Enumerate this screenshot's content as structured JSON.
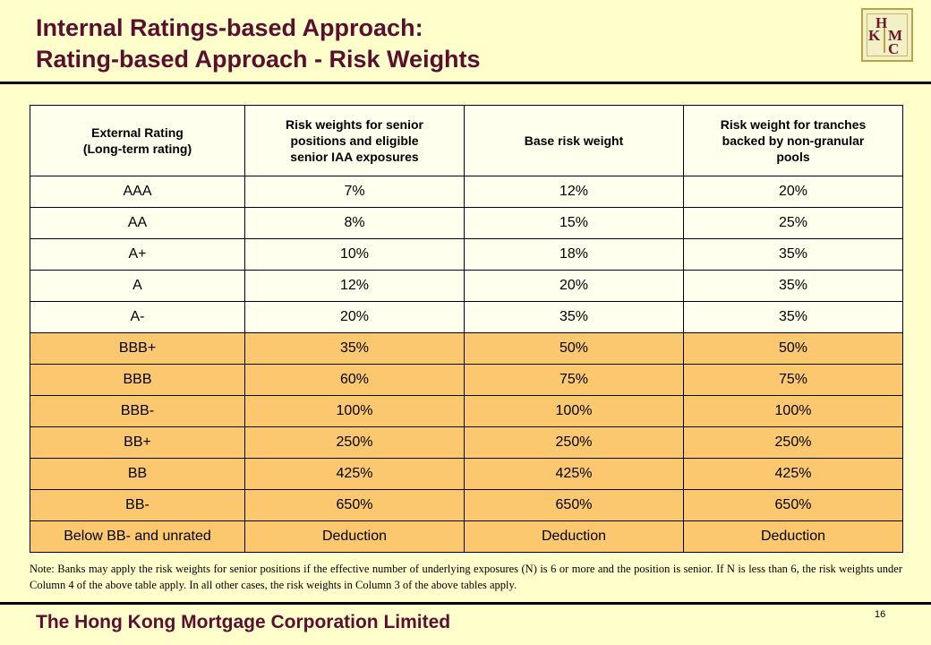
{
  "title": {
    "line1": "Internal Ratings-based Approach:",
    "line2": "Rating-based Approach - Risk Weights"
  },
  "logo": {
    "letters": [
      "H",
      "K",
      "M",
      "C"
    ]
  },
  "table": {
    "headers": [
      [
        "External Rating",
        "(Long-term rating)"
      ],
      [
        "Risk weights for senior",
        "positions and eligible",
        "senior IAA exposures"
      ],
      [
        "Base risk weight"
      ],
      [
        "Risk weight for tranches",
        "backed by non-granular",
        "pools"
      ]
    ],
    "rows": [
      {
        "cells": [
          "AAA",
          "7%",
          "12%",
          "20%"
        ],
        "band": "light"
      },
      {
        "cells": [
          "AA",
          "8%",
          "15%",
          "25%"
        ],
        "band": "light"
      },
      {
        "cells": [
          "A+",
          "10%",
          "18%",
          "35%"
        ],
        "band": "light"
      },
      {
        "cells": [
          "A",
          "12%",
          "20%",
          "35%"
        ],
        "band": "light"
      },
      {
        "cells": [
          "A-",
          "20%",
          "35%",
          "35%"
        ],
        "band": "light"
      },
      {
        "cells": [
          "BBB+",
          "35%",
          "50%",
          "50%"
        ],
        "band": "orange"
      },
      {
        "cells": [
          "BBB",
          "60%",
          "75%",
          "75%"
        ],
        "band": "orange"
      },
      {
        "cells": [
          "BBB-",
          "100%",
          "100%",
          "100%"
        ],
        "band": "orange"
      },
      {
        "cells": [
          "BB+",
          "250%",
          "250%",
          "250%"
        ],
        "band": "orange"
      },
      {
        "cells": [
          "BB",
          "425%",
          "425%",
          "425%"
        ],
        "band": "orange"
      },
      {
        "cells": [
          "BB-",
          "650%",
          "650%",
          "650%"
        ],
        "band": "orange"
      },
      {
        "cells": [
          "Below BB- and unrated",
          "Deduction",
          "Deduction",
          "Deduction"
        ],
        "band": "orange"
      }
    ]
  },
  "note": "Note: Banks may apply the risk weights for senior positions if the effective number of underlying exposures (N) is 6 or more and the position is senior. If N is less than 6, the risk weights under Column 4 of the above table apply.  In all other cases, the risk weights in Column 3 of the above tables apply.",
  "footer": {
    "company": "The Hong Kong Mortgage Corporation Limited",
    "page_number": "16"
  },
  "colors": {
    "title": "#5a0f2e",
    "background": "#ffffcc",
    "band_light": "#ffffee",
    "band_orange": "#fcc86f"
  }
}
